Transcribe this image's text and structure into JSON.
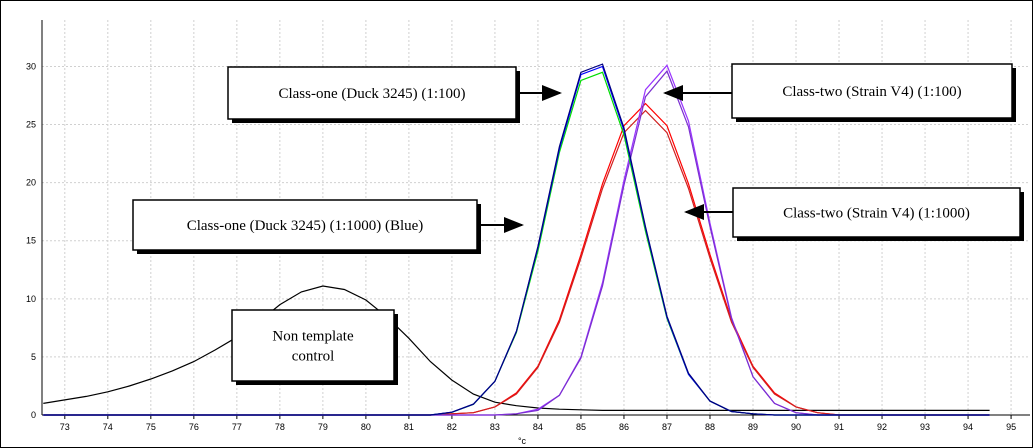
{
  "chart_data": {
    "type": "line",
    "xlabel": "°c",
    "x": [
      72.5,
      73,
      73.5,
      74,
      74.5,
      75,
      75.5,
      76,
      76.5,
      77,
      77.5,
      78,
      78.5,
      79,
      79.5,
      80,
      80.5,
      81,
      81.5,
      82,
      82.5,
      83,
      83.5,
      84,
      84.5,
      85,
      85.5,
      86,
      86.5,
      87,
      87.5,
      88,
      88.5,
      89,
      89.5,
      90,
      90.5,
      91,
      91.5,
      92,
      92.5,
      93,
      93.5,
      94,
      94.5
    ],
    "series": [
      {
        "color": "#000000",
        "values": [
          1.0,
          1.3,
          1.6,
          2.0,
          2.5,
          3.1,
          3.8,
          4.6,
          5.6,
          6.7,
          8.0,
          9.5,
          10.6,
          11.1,
          10.8,
          9.9,
          8.4,
          6.6,
          4.6,
          3.0,
          1.8,
          1.1,
          0.8,
          0.6,
          0.5,
          0.45,
          0.4,
          0.4,
          0.4,
          0.4,
          0.4,
          0.4,
          0.4,
          0.4,
          0.4,
          0.4,
          0.4,
          0.4,
          0.4,
          0.4,
          0.4,
          0.4,
          0.4,
          0.4,
          0.4
        ]
      },
      {
        "color": "#ff0000",
        "values": [
          0,
          0,
          0,
          0,
          0,
          0,
          0,
          0,
          0,
          0,
          0,
          0,
          0,
          0,
          0,
          0,
          0,
          0,
          0,
          0.1,
          0.2,
          0.7,
          1.9,
          4.2,
          8.2,
          13.8,
          19.9,
          24.9,
          26.8,
          24.9,
          19.9,
          13.8,
          8.2,
          4.2,
          1.9,
          0.7,
          0.2,
          0,
          0,
          0,
          0,
          0,
          0,
          0,
          0
        ]
      },
      {
        "color": "#d02020",
        "values": [
          0,
          0,
          0,
          0,
          0,
          0,
          0,
          0,
          0,
          0,
          0,
          0,
          0,
          0,
          0,
          0,
          0,
          0,
          0,
          0.1,
          0.2,
          0.7,
          1.8,
          4.1,
          8.0,
          13.5,
          19.5,
          24.3,
          26.2,
          24.3,
          19.5,
          13.5,
          8.0,
          4.1,
          1.8,
          0.7,
          0.2,
          0,
          0,
          0,
          0,
          0,
          0,
          0,
          0
        ]
      },
      {
        "color": "#9933ff",
        "values": [
          0,
          0,
          0,
          0,
          0,
          0,
          0,
          0,
          0,
          0,
          0,
          0,
          0,
          0,
          0,
          0,
          0,
          0,
          0,
          0,
          0,
          0,
          0.1,
          0.5,
          1.7,
          5.0,
          11.4,
          20.2,
          28.0,
          30.1,
          25.3,
          16.5,
          8.4,
          3.3,
          1.0,
          0.2,
          0,
          0,
          0,
          0,
          0,
          0,
          0,
          0,
          0
        ]
      },
      {
        "color": "#7b2fd0",
        "values": [
          0,
          0,
          0,
          0,
          0,
          0,
          0,
          0,
          0,
          0,
          0,
          0,
          0,
          0,
          0,
          0,
          0,
          0,
          0,
          0,
          0,
          0,
          0.1,
          0.4,
          1.7,
          4.9,
          11.1,
          19.8,
          27.4,
          29.6,
          24.8,
          16.2,
          8.3,
          3.3,
          1.0,
          0.2,
          0,
          0,
          0,
          0,
          0,
          0,
          0,
          0,
          0
        ]
      },
      {
        "color": "#00dd00",
        "values": [
          0,
          0,
          0,
          0,
          0,
          0,
          0,
          0,
          0,
          0,
          0,
          0,
          0,
          0,
          0,
          0,
          0,
          0,
          0,
          0.23,
          0.92,
          2.9,
          7.1,
          14.1,
          22.6,
          28.8,
          29.5,
          24.1,
          15.8,
          8.3,
          3.5,
          1.2,
          0.3,
          0.1,
          0,
          0,
          0,
          0,
          0,
          0,
          0,
          0,
          0,
          0,
          0
        ]
      },
      {
        "color": "#0000ff",
        "values": [
          0,
          0,
          0,
          0,
          0,
          0,
          0,
          0,
          0,
          0,
          0,
          0,
          0,
          0,
          0,
          0,
          0,
          0,
          0,
          0.24,
          0.93,
          2.9,
          7.2,
          14.4,
          22.9,
          29.3,
          30.0,
          24.5,
          16.1,
          8.4,
          3.5,
          1.2,
          0.3,
          0.1,
          0,
          0,
          0,
          0,
          0,
          0,
          0,
          0,
          0,
          0,
          0
        ]
      },
      {
        "color": "#000080",
        "values": [
          0,
          0,
          0,
          0,
          0,
          0,
          0,
          0,
          0,
          0,
          0,
          0,
          0,
          0,
          0,
          0,
          0,
          0,
          0,
          0.24,
          0.94,
          2.9,
          7.2,
          14.5,
          23.1,
          29.5,
          30.2,
          24.7,
          16.2,
          8.5,
          3.6,
          1.2,
          0.3,
          0.1,
          0,
          0,
          0,
          0,
          0,
          0,
          0,
          0,
          0,
          0,
          0
        ]
      }
    ],
    "xlim": [
      72.47,
      95.44
    ],
    "xticks": [
      73,
      74,
      75,
      76,
      77,
      78,
      79,
      80,
      81,
      82,
      83,
      84,
      85,
      86,
      87,
      88,
      89,
      90,
      91,
      92,
      93,
      94,
      95
    ],
    "ylim": [
      0,
      34
    ],
    "yticks": [
      0,
      5,
      10,
      15,
      20,
      25,
      30
    ],
    "grid": true,
    "annotations": [
      {
        "lines": [
          "Class-one (Duck 3245) (1:100)"
        ]
      },
      {
        "lines": [
          "Class-two (Strain V4) (1:100)"
        ]
      },
      {
        "lines": [
          "Class-one (Duck 3245) (1:1000) (Blue)"
        ]
      },
      {
        "lines": [
          "Class-two (Strain V4) (1:1000)"
        ]
      },
      {
        "lines": [
          "Non template",
          "control"
        ]
      }
    ]
  }
}
